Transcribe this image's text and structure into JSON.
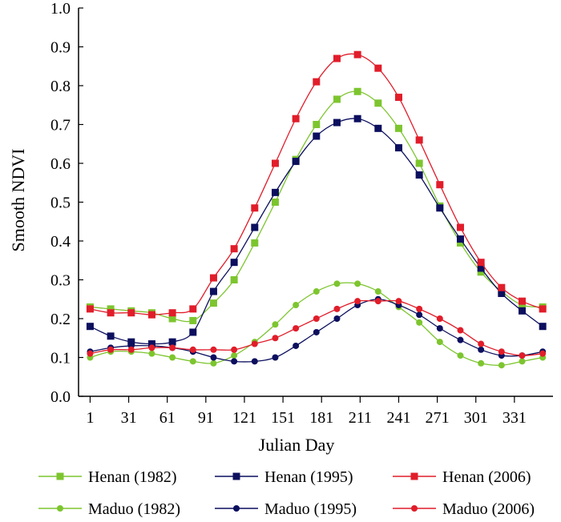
{
  "chart_data": {
    "type": "line",
    "xlabel": "Julian Day",
    "ylabel": "Smooth NDVI",
    "xlim": [
      -8,
      361
    ],
    "ylim": [
      0.0,
      1.0
    ],
    "x_ticks": [
      1,
      31,
      61,
      91,
      121,
      151,
      181,
      211,
      241,
      271,
      301,
      331
    ],
    "x_tick_labels": [
      "1",
      "31",
      "61",
      "91",
      "121",
      "151",
      "181",
      "211",
      "241",
      "271",
      "301",
      "331"
    ],
    "y_ticks": [
      0.0,
      0.1,
      0.2,
      0.3,
      0.4,
      0.5,
      0.6,
      0.7,
      0.8,
      0.9,
      1.0
    ],
    "y_tick_labels": [
      "0.0",
      "0.1",
      "0.2",
      "0.3",
      "0.4",
      "0.5",
      "0.6",
      "0.7",
      "0.8",
      "0.9",
      "1.0"
    ],
    "grid": false,
    "legend_position": "bottom",
    "x": [
      1,
      17,
      33,
      49,
      65,
      81,
      97,
      113,
      129,
      145,
      161,
      177,
      193,
      209,
      225,
      241,
      257,
      273,
      289,
      305,
      321,
      337,
      353
    ],
    "series": [
      {
        "name": "Henan (1982)",
        "color": "#7dc52f",
        "marker": "square",
        "values": [
          0.23,
          0.225,
          0.22,
          0.215,
          0.2,
          0.195,
          0.24,
          0.3,
          0.395,
          0.5,
          0.61,
          0.7,
          0.765,
          0.785,
          0.755,
          0.69,
          0.6,
          0.49,
          0.395,
          0.32,
          0.27,
          0.235,
          0.23
        ]
      },
      {
        "name": "Henan (1995)",
        "color": "#0c0f5e",
        "marker": "square",
        "values": [
          0.18,
          0.155,
          0.14,
          0.135,
          0.14,
          0.165,
          0.27,
          0.345,
          0.435,
          0.525,
          0.605,
          0.67,
          0.705,
          0.715,
          0.69,
          0.64,
          0.57,
          0.485,
          0.405,
          0.33,
          0.265,
          0.22,
          0.18
        ]
      },
      {
        "name": "Henan (2006)",
        "color": "#e11d2a",
        "marker": "square",
        "values": [
          0.225,
          0.215,
          0.215,
          0.21,
          0.215,
          0.225,
          0.305,
          0.38,
          0.485,
          0.6,
          0.715,
          0.81,
          0.87,
          0.88,
          0.845,
          0.77,
          0.66,
          0.545,
          0.435,
          0.345,
          0.28,
          0.245,
          0.225
        ]
      },
      {
        "name": "Maduo (1982)",
        "color": "#7dc52f",
        "marker": "circle",
        "values": [
          0.1,
          0.115,
          0.115,
          0.11,
          0.1,
          0.09,
          0.085,
          0.105,
          0.14,
          0.185,
          0.235,
          0.27,
          0.29,
          0.29,
          0.27,
          0.23,
          0.19,
          0.14,
          0.105,
          0.085,
          0.08,
          0.09,
          0.1
        ]
      },
      {
        "name": "Maduo (1995)",
        "color": "#0c0f5e",
        "marker": "circle",
        "values": [
          0.115,
          0.125,
          0.13,
          0.13,
          0.125,
          0.115,
          0.1,
          0.09,
          0.09,
          0.1,
          0.13,
          0.165,
          0.2,
          0.235,
          0.25,
          0.235,
          0.21,
          0.175,
          0.145,
          0.12,
          0.105,
          0.105,
          0.115
        ]
      },
      {
        "name": "Maduo (2006)",
        "color": "#e11d2a",
        "marker": "circle",
        "values": [
          0.11,
          0.12,
          0.12,
          0.125,
          0.125,
          0.12,
          0.12,
          0.12,
          0.135,
          0.15,
          0.175,
          0.2,
          0.225,
          0.245,
          0.245,
          0.245,
          0.225,
          0.2,
          0.17,
          0.135,
          0.115,
          0.105,
          0.11
        ]
      }
    ]
  }
}
